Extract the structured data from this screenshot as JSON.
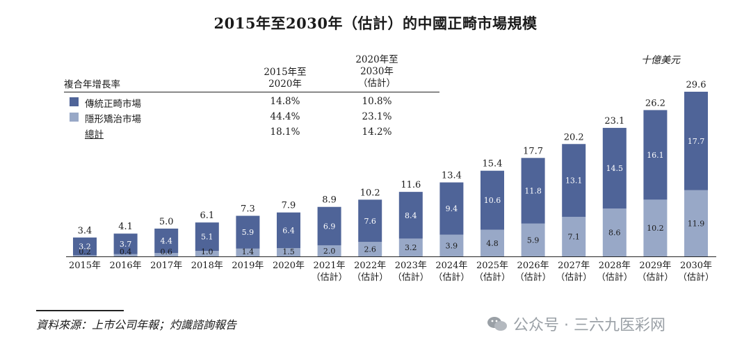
{
  "title": "2015年至2030年（估計）的中國正畸市場規模",
  "unit": "十億美元",
  "cagr_table": {
    "row_header": "複合年增長率",
    "col1_header_line1": "2015年至",
    "col1_header_line2": "2020年",
    "col2_header_line1": "2020年至",
    "col2_header_line2": "2030年",
    "col2_header_line3": "（估計）",
    "rows": [
      {
        "label": "傳統正畸市場",
        "col1": "14.8%",
        "col2": "10.8%"
      },
      {
        "label": "隱形矯治市場",
        "col1": "44.4%",
        "col2": "23.1%"
      },
      {
        "label": "總計",
        "col1": "18.1%",
        "col2": "14.2%"
      }
    ]
  },
  "source": "資料來源：上市公司年報；灼識諮詢報告",
  "watermark": "公众号 · 三六九医彩网",
  "colors": {
    "traditional": "#4f6498",
    "clear_aligner": "#98a8c7"
  },
  "chart_data": {
    "type": "bar",
    "stacked": true,
    "categories": [
      "2015年",
      "2016年",
      "2017年",
      "2018年",
      "2019年",
      "2020年",
      "2021年",
      "2022年",
      "2023年",
      "2024年",
      "2025年",
      "2026年",
      "2027年",
      "2028年",
      "2029年",
      "2030年"
    ],
    "category_sublabels": [
      "",
      "",
      "",
      "",
      "",
      "",
      "（估計）",
      "（估計）",
      "（估計）",
      "（估計）",
      "（估計）",
      "（估計）",
      "（估計）",
      "（估計）",
      "（估計）",
      "（估計）"
    ],
    "series": [
      {
        "name": "隱形矯治市場",
        "values": [
          0.2,
          0.4,
          0.6,
          1.0,
          1.4,
          1.5,
          2.0,
          2.6,
          3.2,
          3.9,
          4.8,
          5.9,
          7.1,
          8.6,
          10.2,
          11.9
        ],
        "labels": [
          "0.2",
          "0.4",
          "0.6",
          "1.0",
          "1.4",
          "1.5",
          "2.0",
          "2.6",
          "3.2",
          "3.9",
          "4.8",
          "5.9",
          "7.1",
          "8.6",
          "10.2",
          "11.9"
        ]
      },
      {
        "name": "傳統正畸市場",
        "values": [
          3.2,
          3.7,
          4.4,
          5.1,
          5.9,
          6.4,
          6.9,
          7.6,
          8.4,
          9.4,
          10.6,
          11.8,
          13.1,
          14.5,
          16.1,
          17.7
        ],
        "labels": [
          "3.2",
          "3.7",
          "4.4",
          "5.1",
          "5.9",
          "6.4",
          "6.9",
          "7.6",
          "8.4",
          "9.4",
          "10.6",
          "11.8",
          "13.1",
          "14.5",
          "16.1",
          "17.7"
        ]
      }
    ],
    "totals": [
      "3.4",
      "4.1",
      "5.0",
      "6.1",
      "7.3",
      "7.9",
      "8.9",
      "10.2",
      "11.6",
      "13.4",
      "15.4",
      "17.7",
      "20.2",
      "23.1",
      "26.2",
      "29.6"
    ],
    "ylim": [
      0,
      29.6
    ],
    "grid": false,
    "legend_position": "top-left"
  }
}
